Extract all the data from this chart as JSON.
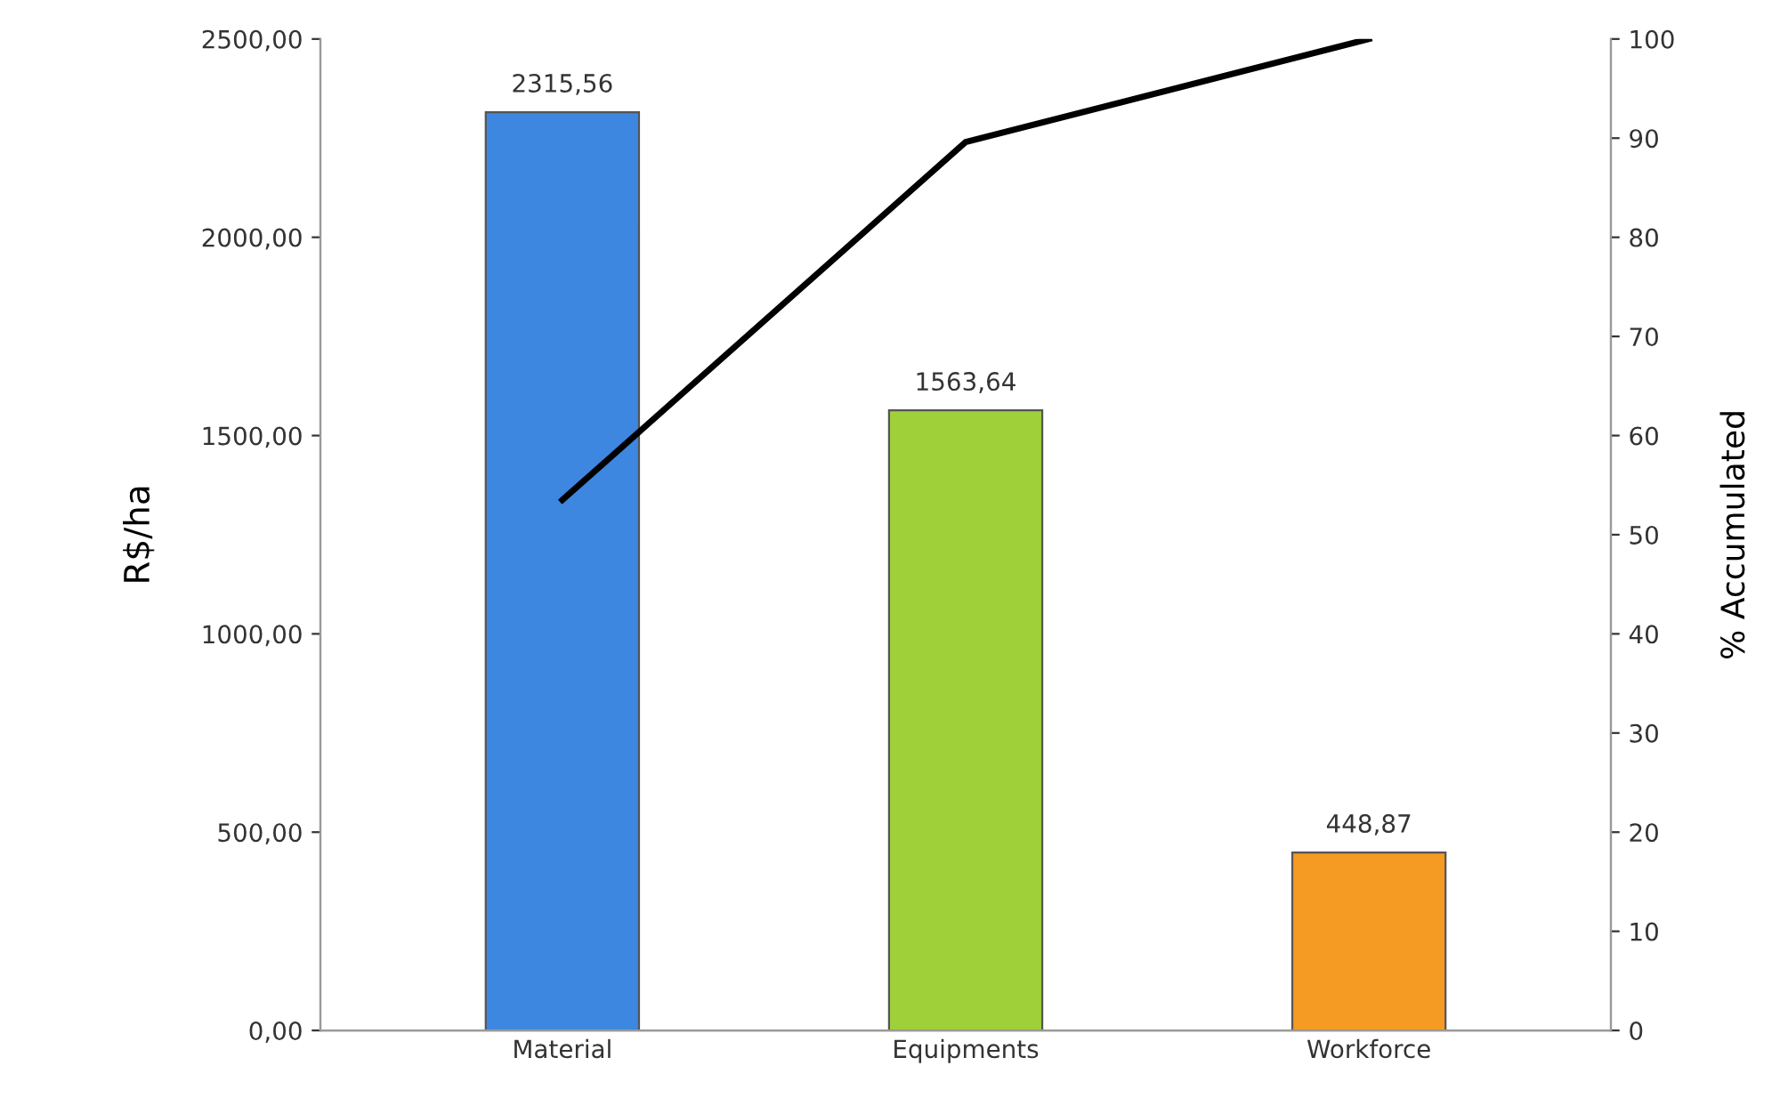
{
  "chart_data": {
    "type": "bar",
    "ylabel": "R$/ha",
    "y2label": "% Accumulated",
    "categories": [
      "Material",
      "Equipments",
      "Workforce"
    ],
    "series": [
      {
        "colors": [
          "#3d87e0",
          "#9fd03a",
          "#f59a22"
        ],
        "values": [
          2315.56,
          1563.64,
          448.87
        ],
        "value_labels": [
          "2315,56",
          "1563,64",
          "448,87"
        ]
      },
      {
        "type": "line",
        "axis": "y2",
        "color": "#000000",
        "values": [
          53.5,
          89.6,
          100
        ]
      }
    ],
    "ylim": [
      0,
      2500
    ],
    "yticks": [
      {
        "value": 0,
        "label": "0,00"
      },
      {
        "value": 500,
        "label": "500,00"
      },
      {
        "value": 1000,
        "label": "1000,00"
      },
      {
        "value": 1500,
        "label": "1500,00"
      },
      {
        "value": 2000,
        "label": "2000,00"
      },
      {
        "value": 2500,
        "label": "2500,00"
      }
    ],
    "y2lim": [
      0,
      100
    ],
    "y2ticks": [
      0,
      10,
      20,
      30,
      40,
      50,
      60,
      70,
      80,
      90,
      100
    ],
    "grid": false,
    "legend": false,
    "marker": "none",
    "line_style": "solid"
  }
}
